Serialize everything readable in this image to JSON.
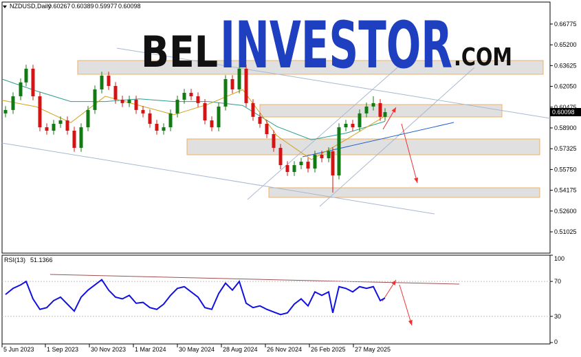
{
  "chart_data": {
    "type": "candlestick",
    "title": "NZDUSD,Daily",
    "header_values": [
      0.60267,
      0.60389,
      0.59977,
      0.60098
    ],
    "x": [
      5,
      16,
      27,
      35,
      45,
      55,
      65,
      75,
      85,
      95,
      105,
      115,
      125,
      135,
      145,
      155,
      165,
      175,
      185,
      195,
      205,
      215,
      225,
      235,
      245,
      255,
      265,
      275,
      285,
      295,
      305,
      315,
      325,
      335,
      345,
      355,
      365,
      375,
      385,
      395,
      405,
      415,
      425,
      435,
      445,
      455,
      465,
      475,
      481,
      490,
      500,
      510,
      520,
      530,
      540,
      550,
      557
    ],
    "open": [
      0.6,
      0.6026,
      0.613,
      0.6235,
      0.6339,
      0.613,
      0.5895,
      0.5869,
      0.5921,
      0.5947,
      0.5869,
      0.5739,
      0.5895,
      0.6026,
      0.6182,
      0.6286,
      0.6208,
      0.6104,
      0.6078,
      0.6104,
      0.6026,
      0.6,
      0.5921,
      0.5869,
      0.5895,
      0.6,
      0.6104,
      0.6156,
      0.613,
      0.6078,
      0.5947,
      0.5895,
      0.6052,
      0.626,
      0.6182,
      0.6339,
      0.6078,
      0.5974,
      0.5921,
      0.5843,
      0.5739,
      0.5608,
      0.5556,
      0.5608,
      0.5634,
      0.5582,
      0.5687,
      0.566,
      0.5713,
      0.553,
      0.5895,
      0.5921,
      0.5895,
      0.6,
      0.6052,
      0.6078,
      0.5974
    ],
    "high": [
      0.6056,
      0.616,
      0.6265,
      0.6369,
      0.6369,
      0.616,
      0.5925,
      0.5951,
      0.5977,
      0.5977,
      0.5899,
      0.5925,
      0.6056,
      0.6212,
      0.6316,
      0.6316,
      0.6238,
      0.6134,
      0.6134,
      0.6134,
      0.6056,
      0.603,
      0.5951,
      0.5925,
      0.603,
      0.6134,
      0.6186,
      0.6186,
      0.616,
      0.6108,
      0.5977,
      0.6082,
      0.629,
      0.629,
      0.6369,
      0.6369,
      0.6108,
      0.6004,
      0.5951,
      0.5873,
      0.5769,
      0.5638,
      0.5638,
      0.5664,
      0.5664,
      0.5717,
      0.5717,
      0.5743,
      0.5743,
      0.5925,
      0.5951,
      0.5951,
      0.603,
      0.6082,
      0.613,
      0.6108,
      0.604
    ],
    "low": [
      0.597,
      0.5996,
      0.61,
      0.6205,
      0.61,
      0.5865,
      0.5839,
      0.5839,
      0.5891,
      0.5839,
      0.5709,
      0.5709,
      0.5865,
      0.5996,
      0.6152,
      0.6178,
      0.6074,
      0.6048,
      0.6048,
      0.5996,
      0.597,
      0.5891,
      0.5839,
      0.5839,
      0.5865,
      0.597,
      0.6074,
      0.61,
      0.6048,
      0.5917,
      0.5865,
      0.5865,
      0.6022,
      0.6152,
      0.6152,
      0.6048,
      0.5944,
      0.5891,
      0.5813,
      0.5709,
      0.5578,
      0.5526,
      0.5526,
      0.5578,
      0.5552,
      0.5552,
      0.563,
      0.563,
      0.54,
      0.55,
      0.5865,
      0.5865,
      0.5865,
      0.597,
      0.6022,
      0.5944,
      0.5944
    ],
    "close": [
      0.6026,
      0.613,
      0.6235,
      0.6339,
      0.613,
      0.5895,
      0.5869,
      0.5921,
      0.5947,
      0.5869,
      0.5739,
      0.5895,
      0.6026,
      0.6182,
      0.6286,
      0.6208,
      0.6104,
      0.6078,
      0.6104,
      0.6026,
      0.6,
      0.5921,
      0.5869,
      0.5895,
      0.6,
      0.6104,
      0.6156,
      0.613,
      0.6078,
      0.5947,
      0.5895,
      0.6052,
      0.626,
      0.6182,
      0.6339,
      0.6078,
      0.5974,
      0.5921,
      0.5843,
      0.5739,
      0.5608,
      0.5556,
      0.5608,
      0.5634,
      0.5582,
      0.5687,
      0.566,
      0.5713,
      0.553,
      0.5895,
      0.5921,
      0.5895,
      0.6,
      0.6052,
      0.6078,
      0.5974,
      0.601
    ],
    "up_color": "#127a12",
    "down_color": "#d41414",
    "xlim": [
      0,
      797
    ],
    "xticks": [
      {
        "value": 0,
        "label": "5 Jun 2023"
      },
      {
        "value": 63,
        "label": "1 Sep 2023"
      },
      {
        "value": 127,
        "label": "30 Nov 2023"
      },
      {
        "value": 191,
        "label": "1 Mar 2024"
      },
      {
        "value": 255,
        "label": "30 May 2024"
      },
      {
        "value": 319,
        "label": "28 Aug 2024"
      },
      {
        "value": 383,
        "label": "26 Nov 2024"
      },
      {
        "value": 447,
        "label": "26 Feb 2025"
      },
      {
        "value": 511,
        "label": "27 May 2025"
      }
    ],
    "ylim": [
      0.4941,
      0.6844
    ],
    "yticks": [
      0.66775,
      {
        "value": 0.652,
        "label": "0.65200"
      },
      0.63625,
      {
        "value": 0.6205,
        "label": "0.62050"
      },
      0.60475,
      {
        "value": 0.589,
        "label": "0.58900"
      },
      0.57325,
      {
        "value": 0.5575,
        "label": "0.55750"
      },
      0.54175,
      {
        "value": 0.526,
        "label": "0.52600"
      },
      0.51025
    ],
    "current_price": 0.60098,
    "moving_averages": [
      {
        "color": "#2a9d8f",
        "x": [
          0,
          50,
          100,
          150,
          200,
          250,
          300,
          350,
          400,
          450,
          500,
          557
        ],
        "values": [
          0.626,
          0.617,
          0.609,
          0.609,
          0.611,
          0.609,
          0.609,
          0.606,
          0.59,
          0.58,
          0.585,
          0.594
        ]
      },
      {
        "color": "#d4a017",
        "x": [
          0,
          50,
          100,
          150,
          200,
          250,
          300,
          350,
          400,
          450,
          500,
          557
        ],
        "values": [
          0.61,
          0.605,
          0.593,
          0.613,
          0.606,
          0.599,
          0.607,
          0.618,
          0.583,
          0.565,
          0.58,
          0.598
        ]
      }
    ],
    "indicator": {
      "type": "line",
      "title": "RSI(13)",
      "value": 51.1366,
      "color": "#1010e0",
      "values": [
        55,
        62,
        66,
        70,
        50,
        38,
        40,
        48,
        52,
        44,
        36,
        52,
        60,
        66,
        72,
        60,
        52,
        50,
        54,
        45,
        46,
        40,
        38,
        44,
        54,
        62,
        64,
        58,
        52,
        40,
        38,
        56,
        68,
        60,
        70,
        45,
        40,
        42,
        38,
        35,
        32,
        34,
        44,
        50,
        42,
        58,
        54,
        58,
        34,
        64,
        62,
        58,
        64,
        62,
        64,
        48,
        51
      ],
      "ylim": [
        0,
        100
      ],
      "yticks": [
        100,
        70,
        30,
        0
      ]
    }
  },
  "watermark": [
    "BEL",
    "INVESTOR",
    ".COM"
  ]
}
